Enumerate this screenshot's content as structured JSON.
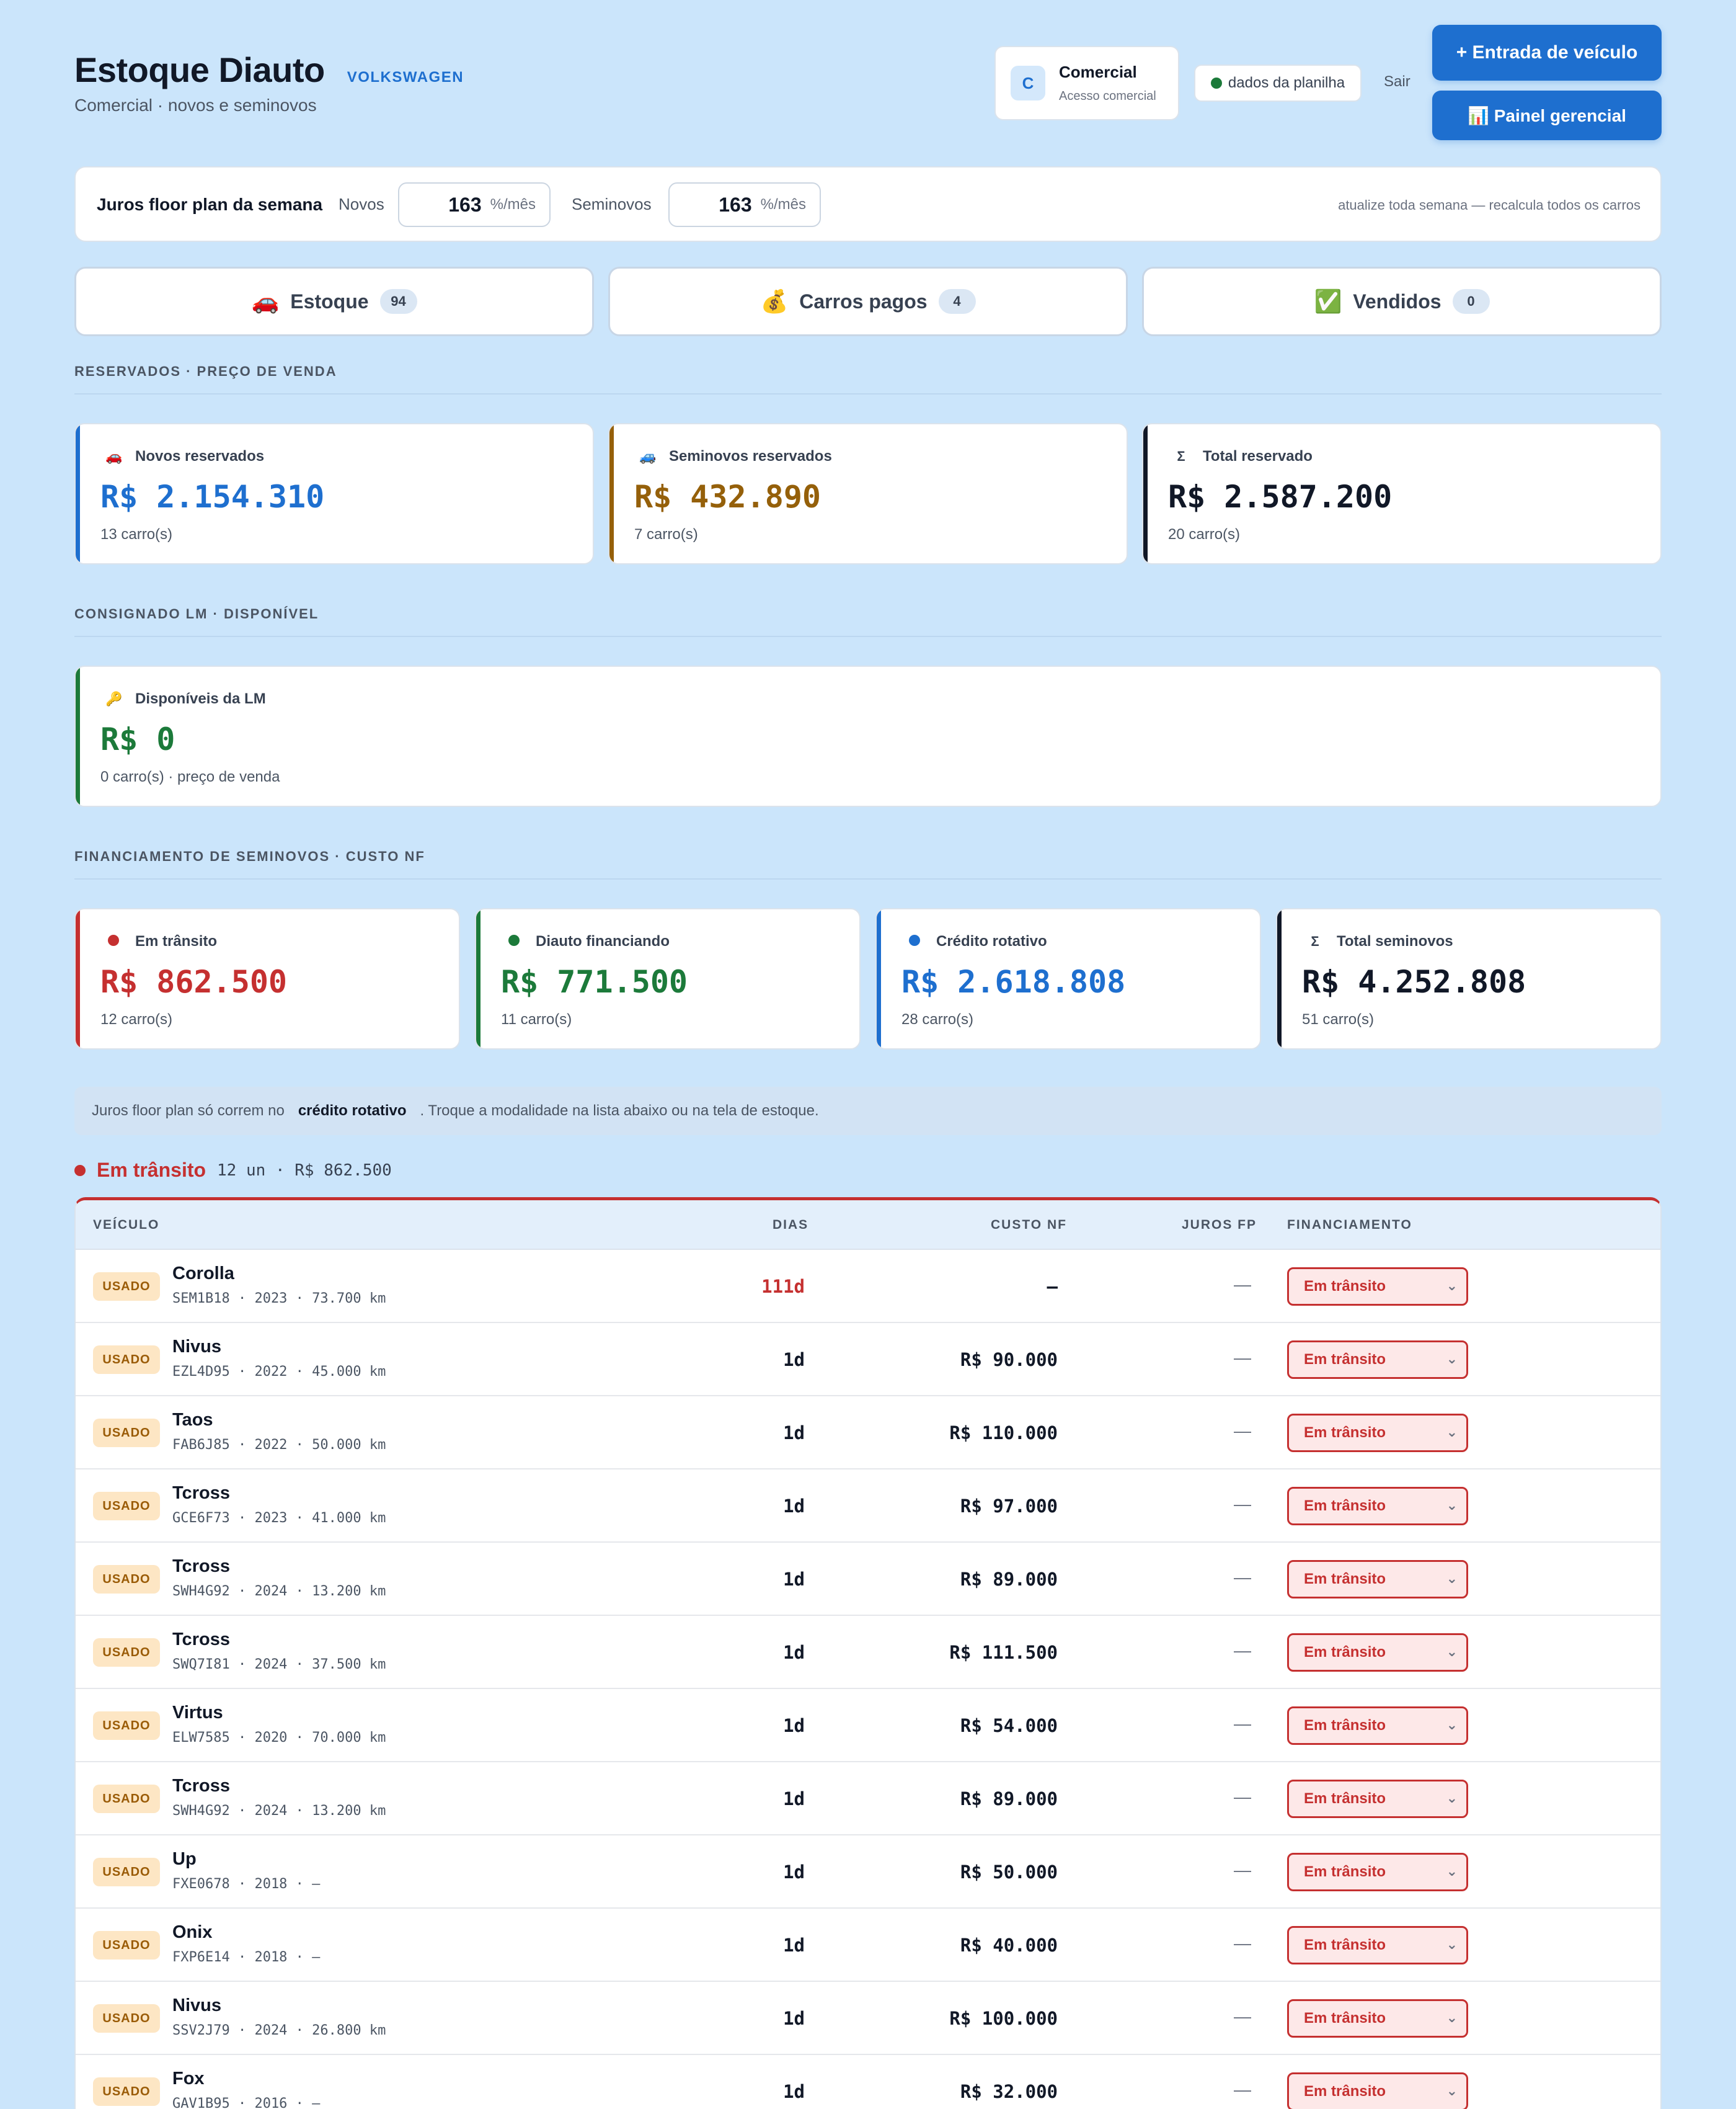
{
  "header": {
    "title": "Estoque Diauto",
    "brand": "VOLKSWAGEN",
    "subtitle": "Comercial · novos e seminovos",
    "user": {
      "initial": "C",
      "name": "Comercial",
      "role": "Acesso comercial"
    },
    "sheet_status": "dados da planilha",
    "logout": "Sair",
    "entry_button": "+  Entrada de veículo",
    "panel_button": "📊 Painel gerencial"
  },
  "floor_plan": {
    "label": "Juros floor plan da semana",
    "new_label": "Novos",
    "new_value": "163",
    "used_label": "Seminovos",
    "used_value": "163",
    "unit": "%/mês",
    "hint": "atualize toda semana — recalcula todos os carros"
  },
  "tabs": [
    {
      "icon": "🚗",
      "label": "Estoque",
      "count": "94"
    },
    {
      "icon": "💰",
      "label": "Carros pagos",
      "count": "4"
    },
    {
      "icon": "✅",
      "label": "Vendidos",
      "count": "0"
    }
  ],
  "sections": {
    "reserved": "RESERVADOS · PREÇO DE VENDA",
    "consigned": "CONSIGNADO LM · DISPONÍVEL",
    "financing": "FINANCIAMENTO DE SEMINOVOS · CUSTO NF"
  },
  "reserved_cards": [
    {
      "icon": "🚗",
      "label": "Novos reservados",
      "value": "R$ 2.154.310",
      "sub": "13 carro(s)",
      "color": "#1e6fcf"
    },
    {
      "icon": "🚙",
      "label": "Seminovos reservados",
      "value": "R$ 432.890",
      "sub": "7 carro(s)",
      "color": "#95600a"
    },
    {
      "icon": "Σ",
      "label": "Total reservado",
      "value": "R$ 2.587.200",
      "sub": "20 carro(s)",
      "color": "#111827"
    }
  ],
  "consigned_card": {
    "icon": "🔑",
    "label": "Disponíveis da LM",
    "value": "R$ 0",
    "sub": "0 carro(s) · preço de venda",
    "color": "#1c7a3a"
  },
  "financing_cards": [
    {
      "label": "Em trânsito",
      "value": "R$ 862.500",
      "sub": "12 carro(s)",
      "color": "#c53030"
    },
    {
      "label": "Diauto financiando",
      "value": "R$ 771.500",
      "sub": "11 carro(s)",
      "color": "#1c7a3a"
    },
    {
      "label": "Crédito rotativo",
      "value": "R$ 2.618.808",
      "sub": "28 carro(s)",
      "color": "#1e6fcf"
    },
    {
      "icon": "Σ",
      "label": "Total seminovos",
      "value": "R$ 4.252.808",
      "sub": "51 carro(s)",
      "color": "#111827"
    }
  ],
  "note": {
    "before": "Juros floor plan só correm no",
    "bold": "crédito rotativo",
    "after": ". Troque a modalidade na lista abaixo ou na tela de estoque."
  },
  "transit_group": {
    "title": "Em trânsito",
    "meta": "12 un  ·  R$ 862.500",
    "columns": [
      "VEÍCULO",
      "DIAS",
      "CUSTO NF",
      "JUROS FP",
      "FINANCIAMENTO"
    ],
    "rows": [
      {
        "badge": "USADO",
        "model": "Corolla",
        "info": "SEM1B18 · 2023 · 73.700 km",
        "days": "111d",
        "cost": "—",
        "fp": "—",
        "financing": "Em trânsito"
      },
      {
        "badge": "USADO",
        "model": "Nivus",
        "info": "EZL4D95 · 2022 · 45.000 km",
        "days": "1d",
        "cost": "R$ 90.000",
        "fp": "—",
        "financing": "Em trânsito"
      },
      {
        "badge": "USADO",
        "model": "Taos",
        "info": "FAB6J85 · 2022 · 50.000 km",
        "days": "1d",
        "cost": "R$ 110.000",
        "fp": "—",
        "financing": "Em trânsito"
      },
      {
        "badge": "USADO",
        "model": "Tcross",
        "info": "GCE6F73 · 2023 · 41.000 km",
        "days": "1d",
        "cost": "R$ 97.000",
        "fp": "—",
        "financing": "Em trânsito"
      },
      {
        "badge": "USADO",
        "model": "Tcross",
        "info": "SWH4G92 · 2024 · 13.200 km",
        "days": "1d",
        "cost": "R$ 89.000",
        "fp": "—",
        "financing": "Em trânsito"
      },
      {
        "badge": "USADO",
        "model": "Tcross",
        "info": "SWQ7I81 · 2024 · 37.500 km",
        "days": "1d",
        "cost": "R$ 111.500",
        "fp": "—",
        "financing": "Em trânsito"
      },
      {
        "badge": "USADO",
        "model": "Virtus",
        "info": "ELW7585 · 2020 · 70.000 km",
        "days": "1d",
        "cost": "R$ 54.000",
        "fp": "—",
        "financing": "Em trânsito"
      },
      {
        "badge": "USADO",
        "model": "Tcross",
        "info": "SWH4G92 · 2024 · 13.200 km",
        "days": "1d",
        "cost": "R$ 89.000",
        "fp": "—",
        "financing": "Em trânsito"
      },
      {
        "badge": "USADO",
        "model": "Up",
        "info": "FXE0678 · 2018 · —",
        "days": "1d",
        "cost": "R$ 50.000",
        "fp": "—",
        "financing": "Em trânsito"
      },
      {
        "badge": "USADO",
        "model": "Onix",
        "info": "FXP6E14 · 2018 · —",
        "days": "1d",
        "cost": "R$ 40.000",
        "fp": "—",
        "financing": "Em trânsito"
      },
      {
        "badge": "USADO",
        "model": "Nivus",
        "info": "SSV2J79 · 2024 · 26.800 km",
        "days": "1d",
        "cost": "R$ 100.000",
        "fp": "—",
        "financing": "Em trânsito"
      },
      {
        "badge": "USADO",
        "model": "Fox",
        "info": "GAV1B95 · 2016 · —",
        "days": "1d",
        "cost": "R$ 32.000",
        "fp": "—",
        "financing": "Em trânsito"
      }
    ]
  }
}
